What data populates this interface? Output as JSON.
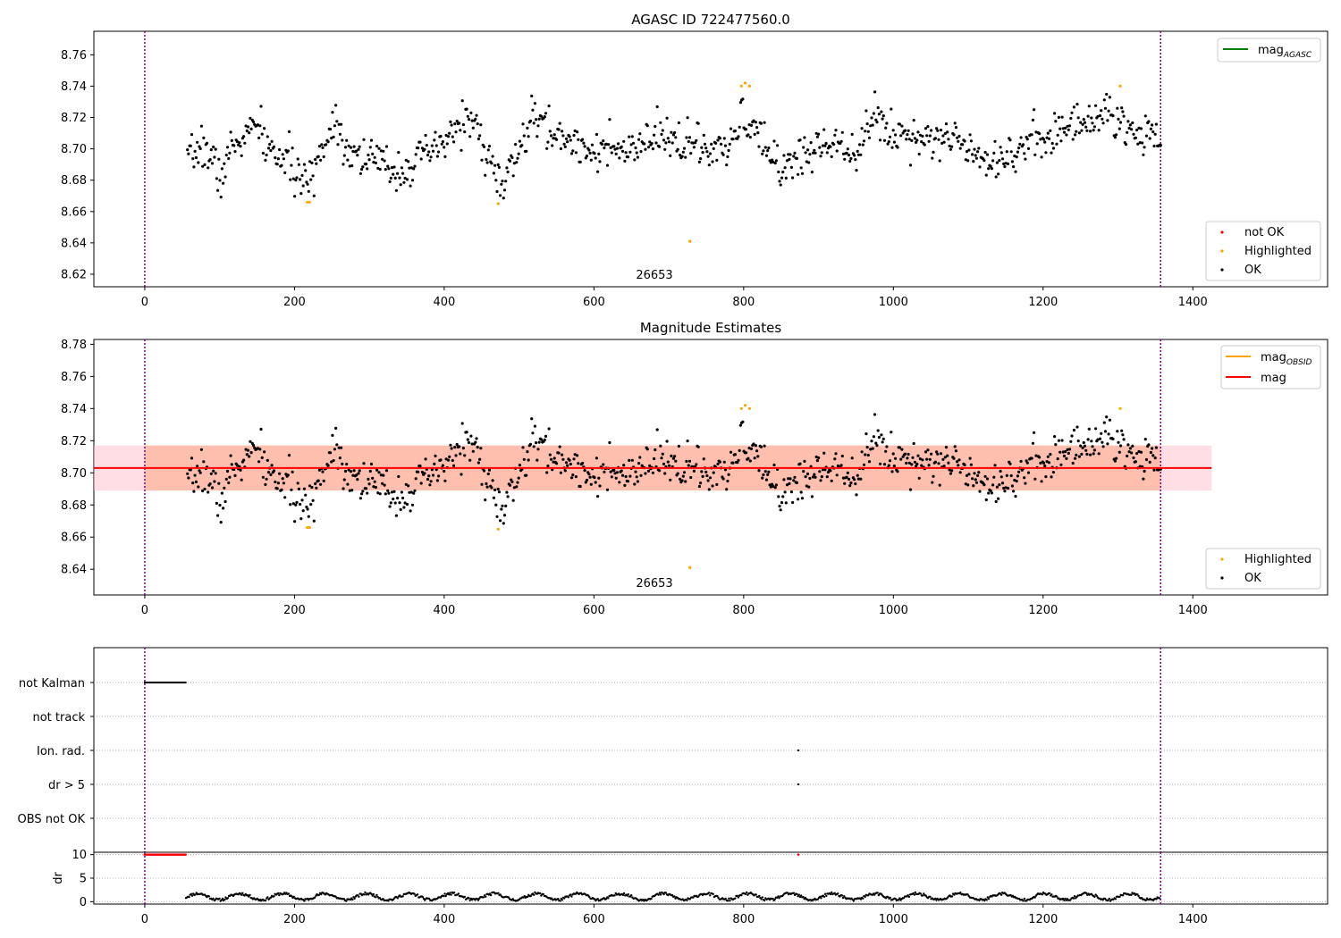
{
  "figure": {
    "obsid_label": "26653",
    "colors": {
      "ok": "#000000",
      "highlighted": "#ffa500",
      "not_ok": "#ff0000",
      "mag_line": "#ff0000",
      "mag_agasc": "#008000",
      "mag_obsid": "#ffa500",
      "obs_band": "#ffa07a",
      "global_band": "#ffc0cb",
      "obs_boundary": "#800080"
    }
  },
  "chart_data": [
    {
      "type": "scatter",
      "title": "AGASC ID 722477560.0",
      "xlim": [
        -68,
        1580
      ],
      "ylim": [
        8.612,
        8.775
      ],
      "xticks": [
        0,
        200,
        400,
        600,
        800,
        1000,
        1200,
        1400
      ],
      "yticks": [
        8.62,
        8.64,
        8.66,
        8.68,
        8.7,
        8.72,
        8.74,
        8.76
      ],
      "obs_boundaries": [
        0,
        1357
      ],
      "obs_label": {
        "x": 678,
        "text": "26653"
      },
      "legend_lines": [
        {
          "name": "mag",
          "sub": "AGASC",
          "color": "#008000",
          "position": "upper right"
        }
      ],
      "legend_points": {
        "position": "lower right",
        "entries": [
          {
            "name": "not OK",
            "color": "#ff0000"
          },
          {
            "name": "Highlighted",
            "color": "#ffa500"
          },
          {
            "name": "OK",
            "color": "#000000"
          }
        ]
      },
      "series": [
        {
          "name": "OK",
          "color": "#000000",
          "trend": [
            [
              57,
              8.69
            ],
            [
              75,
              8.703
            ],
            [
              95,
              8.69
            ],
            [
              100,
              8.679
            ],
            [
              115,
              8.7
            ],
            [
              150,
              8.715
            ],
            [
              165,
              8.7
            ],
            [
              195,
              8.69
            ],
            [
              215,
              8.675
            ],
            [
              232,
              8.695
            ],
            [
              255,
              8.72
            ],
            [
              270,
              8.7
            ],
            [
              300,
              8.694
            ],
            [
              340,
              8.686
            ],
            [
              370,
              8.694
            ],
            [
              400,
              8.703
            ],
            [
              430,
              8.722
            ],
            [
              455,
              8.7
            ],
            [
              470,
              8.682
            ],
            [
              480,
              8.676
            ],
            [
              500,
              8.7
            ],
            [
              520,
              8.72
            ],
            [
              550,
              8.708
            ],
            [
              600,
              8.7
            ],
            [
              650,
              8.697
            ],
            [
              680,
              8.707
            ],
            [
              720,
              8.705
            ],
            [
              760,
              8.697
            ],
            [
              780,
              8.698
            ],
            [
              800,
              8.722
            ],
            [
              820,
              8.706
            ],
            [
              850,
              8.688
            ],
            [
              880,
              8.696
            ],
            [
              920,
              8.706
            ],
            [
              950,
              8.7
            ],
            [
              975,
              8.72
            ],
            [
              1000,
              8.71
            ],
            [
              1050,
              8.708
            ],
            [
              1100,
              8.704
            ],
            [
              1130,
              8.692
            ],
            [
              1170,
              8.7
            ],
            [
              1200,
              8.708
            ],
            [
              1250,
              8.716
            ],
            [
              1290,
              8.725
            ],
            [
              1310,
              8.71
            ],
            [
              1357,
              8.711
            ]
          ],
          "x_start": 57,
          "x_end": 1357,
          "count": 900,
          "noise": 0.0065,
          "seed": 7
        },
        {
          "name": "Highlighted",
          "color": "#ffa500",
          "points": [
            [
              217,
              8.666
            ],
            [
              220,
              8.666
            ],
            [
              472,
              8.665
            ],
            [
              728,
              8.641
            ],
            [
              797,
              8.74
            ],
            [
              802,
              8.742
            ],
            [
              808,
              8.74
            ],
            [
              1303,
              8.74
            ]
          ]
        }
      ]
    },
    {
      "type": "scatter",
      "title": "Magnitude Estimates",
      "xlim": [
        -68,
        1580
      ],
      "ylim": [
        8.624,
        8.783
      ],
      "xticks": [
        0,
        200,
        400,
        600,
        800,
        1000,
        1200,
        1400
      ],
      "yticks": [
        8.64,
        8.66,
        8.68,
        8.7,
        8.72,
        8.74,
        8.76,
        8.78
      ],
      "obs_boundaries": [
        0,
        1357
      ],
      "obs_label": {
        "x": 678,
        "text": "26653"
      },
      "mag": {
        "value": 8.703,
        "x_start": -68,
        "x_end": 1425
      },
      "mag_band_global": {
        "low": 8.689,
        "high": 8.717,
        "x_start": -68,
        "x_end": 1425
      },
      "mag_band_obs": {
        "low": 8.689,
        "high": 8.717,
        "x_start": 0,
        "x_end": 1357
      },
      "legend_lines": [
        {
          "name": "mag",
          "sub": "OBSID",
          "color": "#ffa500"
        },
        {
          "name": "mag",
          "sub": "",
          "color": "#ff0000"
        }
      ],
      "legend_points": {
        "position": "lower right",
        "entries": [
          {
            "name": "Highlighted",
            "color": "#ffa500"
          },
          {
            "name": "OK",
            "color": "#000000"
          }
        ]
      }
    },
    {
      "type": "scatter",
      "title": "",
      "xlim": [
        -68,
        1580
      ],
      "flag_rows": [
        "not Kalman",
        "not track",
        "Ion. rad.",
        "dr > 5",
        "OBS not OK"
      ],
      "flags": [
        {
          "row": "not Kalman",
          "x_start": 0,
          "x_end": 55
        },
        {
          "row": "Ion. rad.",
          "x": 873
        },
        {
          "row": "dr > 5",
          "x": 873
        }
      ]
    },
    {
      "type": "scatter",
      "title": "",
      "ylabel": "dr",
      "xlim": [
        -68,
        1580
      ],
      "ylim": [
        -0.5,
        10.5
      ],
      "xticks": [
        0,
        200,
        400,
        600,
        800,
        1000,
        1200,
        1400
      ],
      "yticks": [
        0,
        5,
        10
      ],
      "not_ok_range": {
        "x_start": 0,
        "x_end": 55,
        "y": 10
      },
      "not_ok_points": [
        [
          873,
          10
        ]
      ],
      "ok_range": {
        "x_start": 55,
        "x_end": 1357,
        "y_min": 0.1,
        "y_max": 2.0
      }
    }
  ]
}
